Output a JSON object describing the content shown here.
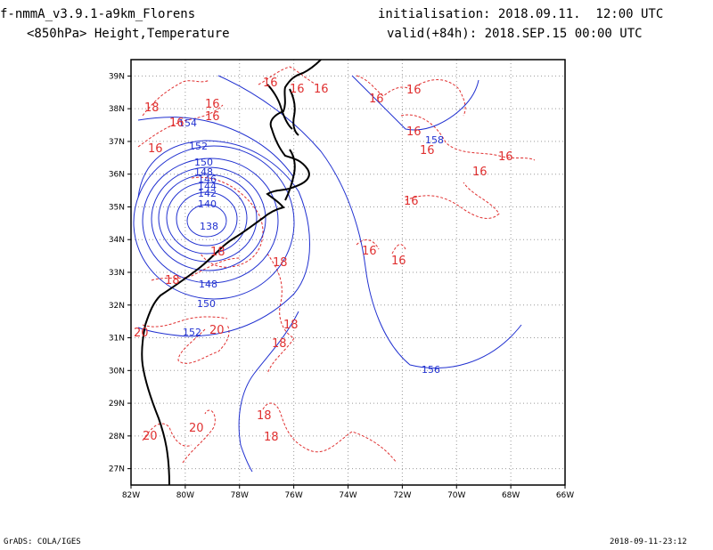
{
  "header": {
    "model_title": "f-nmmA_v3.9.1-a9km_Florens",
    "field_title": "<850hPa> Height,Temperature",
    "init_label": "initialisation: 2018.09.11.  12:00 UTC",
    "valid_label": "valid(+84h): 2018.SEP.15 00:00 UTC"
  },
  "footer": {
    "credit": "GrADS: COLA/IGES",
    "timestamp": "2018-09-11-23:12"
  },
  "colors": {
    "height_contour": "#2030d0",
    "temperature_contour": "#e03030",
    "coastline": "#000000",
    "grid": "#9a9a9a"
  },
  "map": {
    "lon_range": [
      -82,
      -66
    ],
    "lat_range": [
      26.5,
      39.5
    ],
    "lon_ticks": [
      "82W",
      "80W",
      "78W",
      "76W",
      "74W",
      "72W",
      "70W",
      "68W",
      "66W"
    ],
    "lat_ticks": [
      "27N",
      "28N",
      "29N",
      "30N",
      "31N",
      "32N",
      "33N",
      "34N",
      "35N",
      "36N",
      "37N",
      "38N",
      "39N"
    ],
    "grid": "dotted",
    "low_center_label": "138",
    "height_labels": [
      "154",
      "152",
      "150",
      "148",
      "146",
      "144",
      "142",
      "140",
      "138",
      "148",
      "150",
      "152",
      "158",
      "156"
    ],
    "temperature_labels": [
      "18",
      "16",
      "16",
      "16",
      "16",
      "16",
      "16",
      "16",
      "16",
      "16",
      "16",
      "16",
      "16",
      "16",
      "18",
      "18",
      "18",
      "18",
      "18",
      "18",
      "18",
      "20",
      "20",
      "20",
      "20"
    ]
  }
}
